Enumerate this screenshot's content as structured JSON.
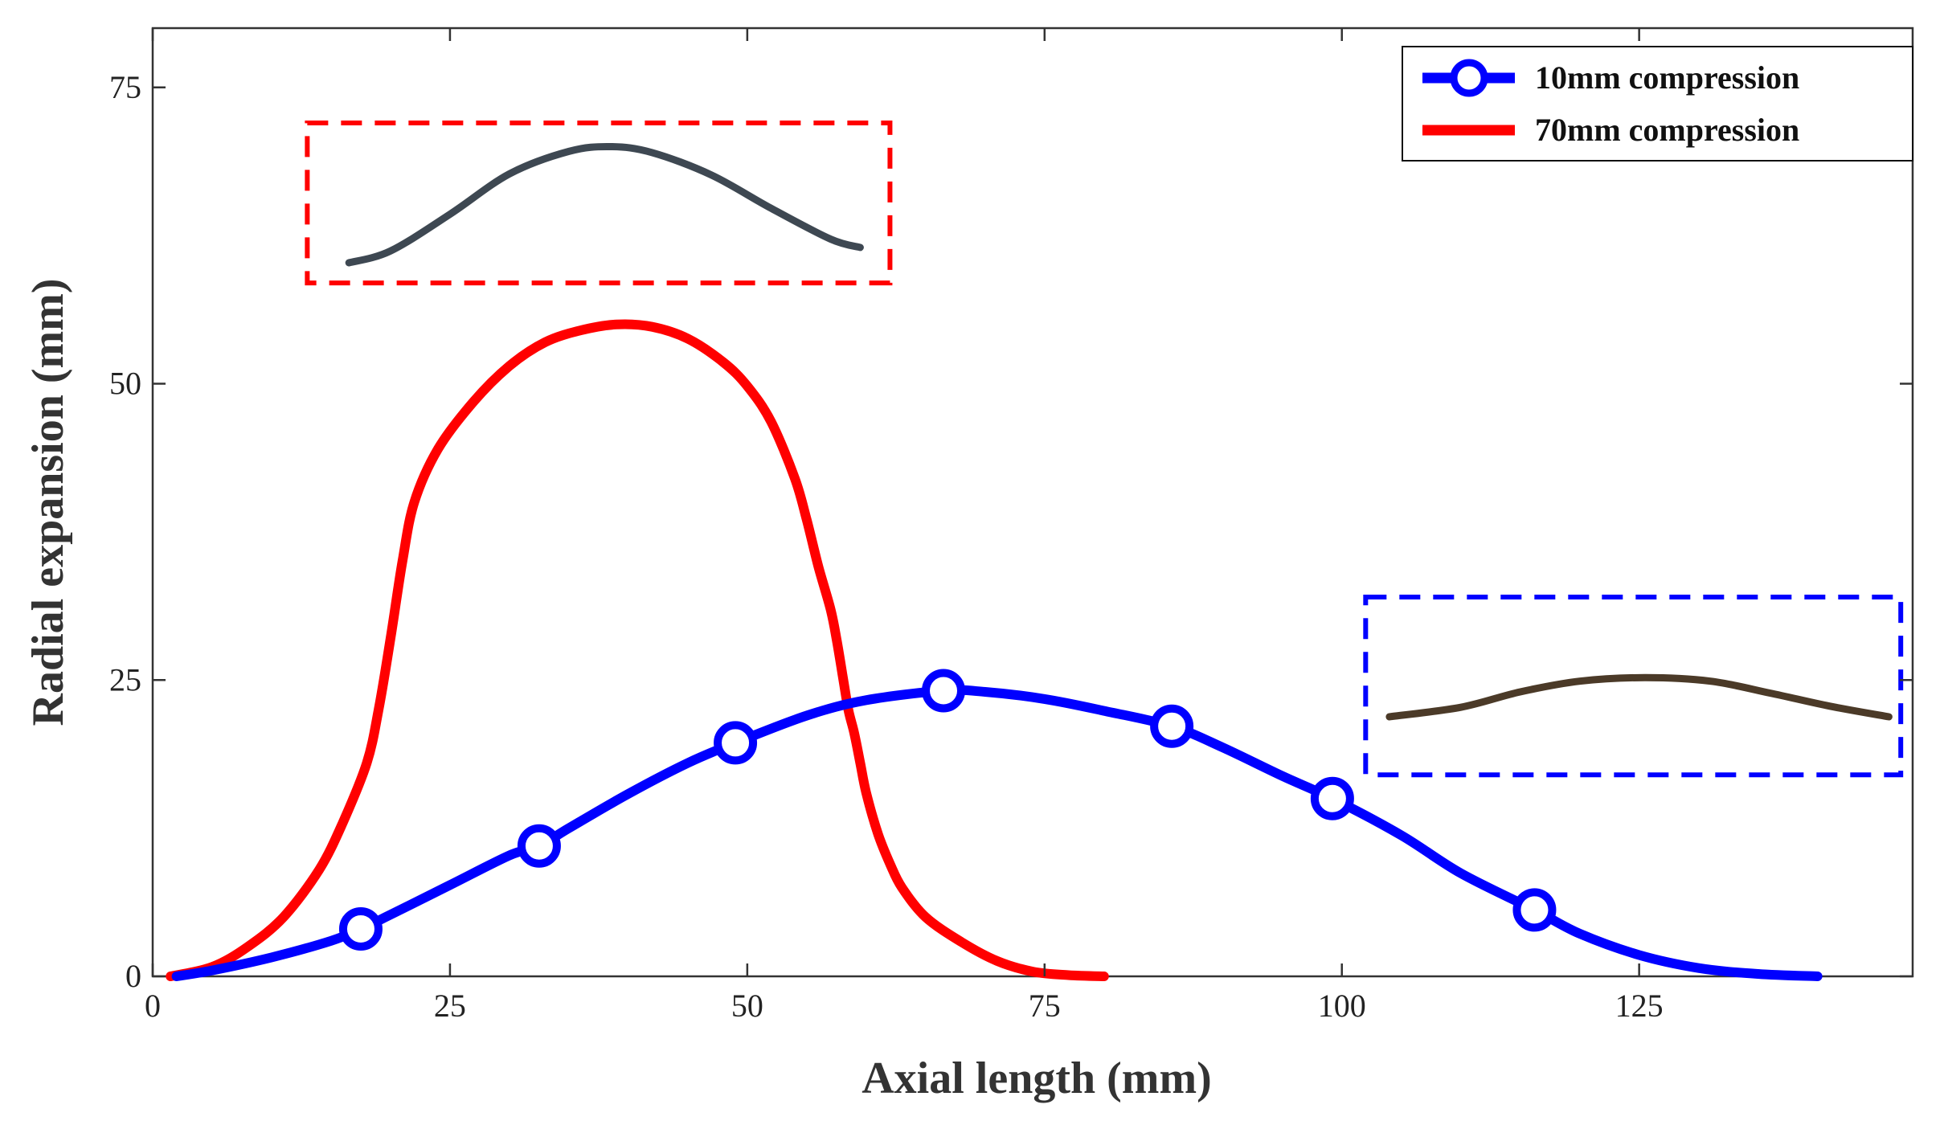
{
  "chart_data": {
    "type": "line",
    "xlabel": "Axial length (mm)",
    "ylabel": "Radial expansion (mm)",
    "xlim": [
      0,
      148
    ],
    "ylim": [
      0,
      80
    ],
    "xticks": [
      0,
      25,
      50,
      75,
      100,
      125
    ],
    "yticks": [
      0,
      25,
      50,
      75
    ],
    "xtick_labels": [
      "0",
      "25",
      "50",
      "75",
      "100",
      "125"
    ],
    "ytick_labels": [
      "0",
      "25",
      "50",
      "75"
    ],
    "grid": false,
    "legend_position": "top-right",
    "series": [
      {
        "name": "10mm compression",
        "color": "#0000ff",
        "marker": "circle",
        "x": [
          2,
          5,
          10,
          15,
          17.5,
          20,
          25,
          30,
          32.5,
          35,
          40,
          45,
          49,
          55,
          60,
          66.5,
          70,
          75,
          80,
          85.7,
          90,
          95,
          99.2,
          105,
          110,
          116.2,
          120,
          125,
          130,
          135,
          140
        ],
        "y": [
          0,
          0.5,
          1.6,
          3.0,
          4.0,
          5.2,
          7.7,
          10.2,
          11.0,
          12.5,
          15.4,
          18.0,
          19.7,
          22.0,
          23.3,
          24.1,
          24.0,
          23.4,
          22.4,
          21.1,
          19.3,
          16.9,
          15.0,
          11.9,
          8.7,
          5.6,
          3.6,
          1.8,
          0.7,
          0.2,
          0
        ]
      },
      {
        "name": "70mm compression",
        "color": "#ff0000",
        "x": [
          1.5,
          5,
          8,
          11,
          14,
          16,
          18,
          19,
          20,
          21,
          22,
          24,
          27,
          30,
          33,
          36,
          39,
          42,
          45,
          48,
          50,
          52,
          54,
          55,
          56,
          57,
          57.5,
          58,
          58.5,
          59,
          59.5,
          60,
          61,
          62,
          63,
          65,
          68,
          71,
          74,
          77,
          80
        ],
        "y": [
          0,
          0.8,
          2.5,
          5.0,
          9.0,
          13.0,
          18.0,
          22.5,
          28.5,
          35.0,
          40.0,
          44.5,
          48.5,
          51.5,
          53.5,
          54.5,
          55.0,
          54.8,
          53.8,
          51.8,
          49.8,
          46.8,
          42.0,
          38.5,
          34.5,
          31.0,
          28.5,
          25.5,
          22.5,
          20.5,
          18.0,
          15.5,
          12.0,
          9.5,
          7.5,
          5.0,
          2.9,
          1.3,
          0.4,
          0.1,
          0
        ]
      }
    ],
    "insets": [
      {
        "name": "70mm inset",
        "border_color": "#ff0000",
        "curve_color": "#3e4852",
        "x_range": [
          13,
          62
        ],
        "y_range": [
          58.5,
          72
        ],
        "curve_x": [
          16.5,
          20,
          25,
          30,
          35,
          38.5,
          42,
          47,
          52,
          57,
          59.5
        ],
        "curve_y": [
          60.2,
          61.2,
          64.3,
          67.7,
          69.6,
          70.0,
          69.5,
          67.6,
          64.8,
          62.2,
          61.5
        ]
      },
      {
        "name": "10mm inset",
        "border_color": "#0000ff",
        "curve_color": "#4b3a28",
        "x_range": [
          102,
          147
        ],
        "y_range": [
          17,
          32
        ],
        "curve_x": [
          104,
          110,
          115,
          120,
          125.5,
          131,
          136,
          141,
          146
        ],
        "curve_y": [
          21.9,
          22.7,
          24.0,
          24.9,
          25.2,
          24.9,
          23.9,
          22.8,
          21.9
        ]
      }
    ]
  }
}
